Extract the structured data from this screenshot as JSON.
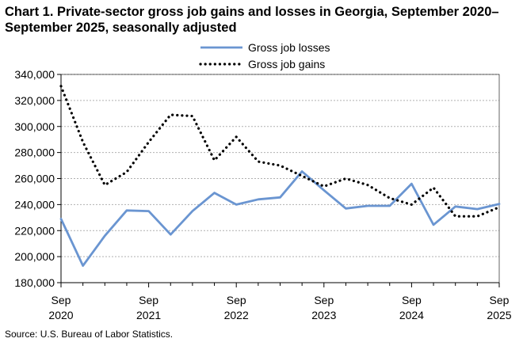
{
  "chart_data": {
    "type": "line",
    "title": "Chart 1. Private-sector gross job gains and losses in Georgia, September 2020–September 2025, seasonally adjusted",
    "source": "Source: U.S. Bureau of Labor Statistics.",
    "xlabel": "",
    "ylabel": "",
    "ylim": [
      180000,
      340000
    ],
    "yticks": [
      180000,
      200000,
      220000,
      240000,
      260000,
      280000,
      300000,
      320000,
      340000
    ],
    "ytick_labels": [
      "180,000",
      "200,000",
      "220,000",
      "240,000",
      "260,000",
      "280,000",
      "300,000",
      "320,000",
      "340,000"
    ],
    "xtick_labels": [
      {
        "month": "Sep",
        "year": "2020"
      },
      {
        "month": "Sep",
        "year": "2021"
      },
      {
        "month": "Sep",
        "year": "2022"
      },
      {
        "month": "Sep",
        "year": "2023"
      },
      {
        "month": "Sep",
        "year": "2024"
      },
      {
        "month": "Sep",
        "year": "2025"
      }
    ],
    "x": [
      "Sep 2020",
      "Dec 2020",
      "Mar 2021",
      "Jun 2021",
      "Sep 2021",
      "Dec 2021",
      "Mar 2022",
      "Jun 2022",
      "Sep 2022",
      "Dec 2022",
      "Mar 2023",
      "Jun 2023",
      "Sep 2023",
      "Dec 2023",
      "Mar 2024",
      "Jun 2024",
      "Sep 2024",
      "Dec 2024",
      "Mar 2025",
      "Jun 2025",
      "Sep 2025"
    ],
    "grid": true,
    "legend_position": "top-center",
    "series": [
      {
        "name": "Gross job losses",
        "color": "#6a95d1",
        "style": "solid",
        "values": [
          229000,
          193000,
          216000,
          235500,
          235000,
          217000,
          235000,
          249000,
          240000,
          244000,
          245500,
          265500,
          251000,
          237000,
          239000,
          239000,
          256000,
          224500,
          238500,
          236500,
          240500
        ]
      },
      {
        "name": "Gross job gains",
        "color": "#000000",
        "style": "dotted",
        "values": [
          331000,
          288000,
          255000,
          265000,
          288000,
          309000,
          308000,
          274000,
          292000,
          273000,
          270000,
          262000,
          254000,
          260000,
          255000,
          245000,
          240000,
          253000,
          231000,
          231000,
          238000
        ]
      }
    ]
  }
}
